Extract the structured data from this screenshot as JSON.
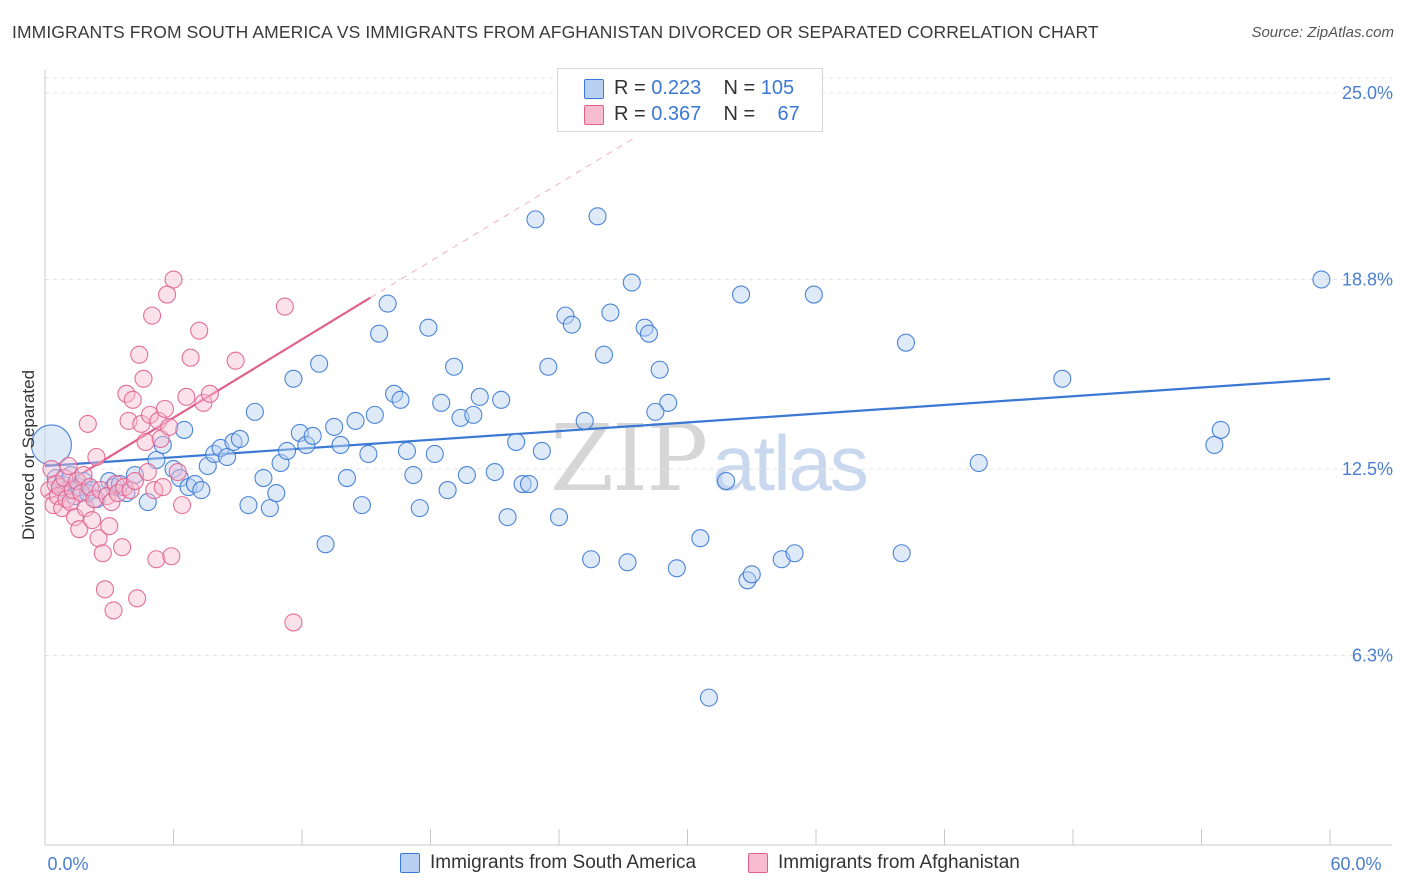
{
  "title": "IMMIGRANTS FROM SOUTH AMERICA VS IMMIGRANTS FROM AFGHANISTAN DIVORCED OR SEPARATED CORRELATION CHART",
  "source": "Source: ZipAtlas.com",
  "watermark": {
    "zip": "ZIP",
    "atlas": "atlas"
  },
  "colors": {
    "blue": "#3a78d4",
    "blue_fill": "#b9d0f2",
    "pink": "#e0608e",
    "pink_fill": "#f7bcd0",
    "grid": "#e2e2e2"
  },
  "legend": {
    "rows": [
      {
        "r_label": "R =",
        "r_value": "0.223",
        "n_label": "N =",
        "n_value": "105"
      },
      {
        "r_label": "R =",
        "r_value": "0.367",
        "n_label": "N =",
        "n_value": "67"
      }
    ]
  },
  "chart_data": {
    "type": "scatter",
    "title": "IMMIGRANTS FROM SOUTH AMERICA VS IMMIGRANTS FROM AFGHANISTAN DIVORCED OR SEPARATED CORRELATION CHART",
    "xlabel": "",
    "ylabel": "Divorced or Separated",
    "xlim": [
      0,
      60
    ],
    "ylim": [
      0,
      25.5
    ],
    "x_tick_labels": [
      "0.0%",
      "60.0%"
    ],
    "y_ticks": [
      6.3,
      12.5,
      18.8,
      25.0
    ],
    "y_tick_labels": [
      "6.3%",
      "12.5%",
      "18.8%",
      "25.0%"
    ],
    "legend_position": "top-center",
    "series": [
      {
        "name": "Immigrants from South America",
        "color": "#3a78d4",
        "R": 0.223,
        "N": 105,
        "trend": {
          "x": [
            0,
            60
          ],
          "y": [
            12.6,
            15.5
          ],
          "dashed_extension": false
        },
        "points": [
          [
            0.3,
            13.3
          ],
          [
            0.5,
            12.2
          ],
          [
            0.8,
            12.0
          ],
          [
            1.0,
            11.8
          ],
          [
            1.2,
            12.3
          ],
          [
            1.4,
            11.6
          ],
          [
            1.6,
            11.9
          ],
          [
            1.8,
            12.1
          ],
          [
            2.0,
            11.7
          ],
          [
            2.2,
            11.8
          ],
          [
            2.4,
            11.5
          ],
          [
            3.0,
            12.1
          ],
          [
            3.2,
            11.9
          ],
          [
            3.5,
            12.0
          ],
          [
            3.8,
            11.7
          ],
          [
            4.2,
            12.3
          ],
          [
            4.8,
            11.4
          ],
          [
            5.2,
            12.8
          ],
          [
            5.5,
            13.3
          ],
          [
            6.0,
            12.5
          ],
          [
            6.3,
            12.2
          ],
          [
            6.5,
            13.8
          ],
          [
            6.7,
            11.9
          ],
          [
            7.0,
            12.0
          ],
          [
            7.3,
            11.8
          ],
          [
            7.6,
            12.6
          ],
          [
            7.9,
            13.0
          ],
          [
            8.2,
            13.2
          ],
          [
            8.5,
            12.9
          ],
          [
            8.8,
            13.4
          ],
          [
            9.1,
            13.5
          ],
          [
            9.5,
            11.3
          ],
          [
            9.8,
            14.4
          ],
          [
            10.2,
            12.2
          ],
          [
            10.5,
            11.2
          ],
          [
            10.8,
            11.7
          ],
          [
            11.0,
            12.7
          ],
          [
            11.3,
            13.1
          ],
          [
            11.6,
            15.5
          ],
          [
            11.9,
            13.7
          ],
          [
            12.2,
            13.3
          ],
          [
            12.5,
            13.6
          ],
          [
            12.8,
            16.0
          ],
          [
            13.1,
            10.0
          ],
          [
            13.5,
            13.9
          ],
          [
            13.8,
            13.3
          ],
          [
            14.1,
            12.2
          ],
          [
            14.5,
            14.1
          ],
          [
            14.8,
            11.3
          ],
          [
            15.1,
            13.0
          ],
          [
            15.4,
            14.3
          ],
          [
            15.6,
            17.0
          ],
          [
            16.0,
            18.0
          ],
          [
            16.3,
            15.0
          ],
          [
            16.6,
            14.8
          ],
          [
            16.9,
            13.1
          ],
          [
            17.2,
            12.3
          ],
          [
            17.5,
            11.2
          ],
          [
            17.9,
            17.2
          ],
          [
            18.2,
            13.0
          ],
          [
            18.5,
            14.7
          ],
          [
            18.8,
            11.8
          ],
          [
            19.1,
            15.9
          ],
          [
            19.4,
            14.2
          ],
          [
            19.7,
            12.3
          ],
          [
            20.0,
            14.3
          ],
          [
            20.3,
            14.9
          ],
          [
            21.0,
            12.4
          ],
          [
            21.3,
            14.8
          ],
          [
            21.6,
            10.9
          ],
          [
            22.0,
            13.4
          ],
          [
            22.3,
            12.0
          ],
          [
            22.6,
            12.0
          ],
          [
            22.9,
            20.8
          ],
          [
            23.2,
            13.1
          ],
          [
            23.5,
            15.9
          ],
          [
            24.0,
            10.9
          ],
          [
            24.3,
            17.6
          ],
          [
            24.6,
            17.3
          ],
          [
            25.2,
            14.1
          ],
          [
            25.5,
            9.5
          ],
          [
            25.8,
            20.9
          ],
          [
            26.1,
            16.3
          ],
          [
            26.4,
            17.7
          ],
          [
            27.2,
            9.4
          ],
          [
            27.4,
            18.7
          ],
          [
            28.0,
            17.2
          ],
          [
            28.2,
            17.0
          ],
          [
            28.7,
            15.8
          ],
          [
            29.1,
            14.7
          ],
          [
            28.5,
            14.4
          ],
          [
            29.5,
            9.2
          ],
          [
            30.6,
            10.2
          ],
          [
            31.0,
            4.9
          ],
          [
            31.8,
            12.1
          ],
          [
            32.5,
            18.3
          ],
          [
            32.8,
            8.8
          ],
          [
            33.0,
            9.0
          ],
          [
            34.4,
            9.5
          ],
          [
            35.0,
            9.7
          ],
          [
            35.9,
            18.3
          ],
          [
            40.0,
            9.7
          ],
          [
            40.2,
            16.7
          ],
          [
            43.6,
            12.7
          ],
          [
            47.5,
            15.5
          ],
          [
            54.6,
            13.3
          ],
          [
            54.9,
            13.8
          ],
          [
            59.6,
            18.8
          ]
        ]
      },
      {
        "name": "Immigrants from Afghanistan",
        "color": "#e0608e",
        "R": 0.367,
        "N": 67,
        "trend": {
          "x": [
            0,
            15.2
          ],
          "y": [
            11.6,
            18.2
          ],
          "dashed_extension": true,
          "dashed_to": [
            27.5,
            23.5
          ]
        },
        "points": [
          [
            0.2,
            11.8
          ],
          [
            0.3,
            12.5
          ],
          [
            0.4,
            11.3
          ],
          [
            0.5,
            12.0
          ],
          [
            0.6,
            11.6
          ],
          [
            0.7,
            11.9
          ],
          [
            0.8,
            11.2
          ],
          [
            0.9,
            12.2
          ],
          [
            1.0,
            11.5
          ],
          [
            1.1,
            12.6
          ],
          [
            1.2,
            11.4
          ],
          [
            1.3,
            11.8
          ],
          [
            1.4,
            10.9
          ],
          [
            1.5,
            12.1
          ],
          [
            1.6,
            10.5
          ],
          [
            1.7,
            11.7
          ],
          [
            1.8,
            12.3
          ],
          [
            1.9,
            11.2
          ],
          [
            2.0,
            14.0
          ],
          [
            2.1,
            11.9
          ],
          [
            2.2,
            10.8
          ],
          [
            2.3,
            11.5
          ],
          [
            2.4,
            12.9
          ],
          [
            2.5,
            10.2
          ],
          [
            2.6,
            11.8
          ],
          [
            2.7,
            9.7
          ],
          [
            2.8,
            8.5
          ],
          [
            2.9,
            11.6
          ],
          [
            3.0,
            10.6
          ],
          [
            3.1,
            11.4
          ],
          [
            3.2,
            7.8
          ],
          [
            3.3,
            12.0
          ],
          [
            3.4,
            11.7
          ],
          [
            3.6,
            9.9
          ],
          [
            3.7,
            11.9
          ],
          [
            3.8,
            15.0
          ],
          [
            3.9,
            14.1
          ],
          [
            4.0,
            11.8
          ],
          [
            4.1,
            14.8
          ],
          [
            4.2,
            12.1
          ],
          [
            4.3,
            8.2
          ],
          [
            4.4,
            16.3
          ],
          [
            4.5,
            14.0
          ],
          [
            4.6,
            15.5
          ],
          [
            4.7,
            13.4
          ],
          [
            4.8,
            12.4
          ],
          [
            4.9,
            14.3
          ],
          [
            5.0,
            17.6
          ],
          [
            5.1,
            11.8
          ],
          [
            5.2,
            9.5
          ],
          [
            5.3,
            14.1
          ],
          [
            5.4,
            13.5
          ],
          [
            5.5,
            11.9
          ],
          [
            5.6,
            14.5
          ],
          [
            5.7,
            18.3
          ],
          [
            5.8,
            13.9
          ],
          [
            5.9,
            9.6
          ],
          [
            6.0,
            18.8
          ],
          [
            6.2,
            12.4
          ],
          [
            6.4,
            11.3
          ],
          [
            6.6,
            14.9
          ],
          [
            6.8,
            16.2
          ],
          [
            7.2,
            17.1
          ],
          [
            7.4,
            14.7
          ],
          [
            7.7,
            15.0
          ],
          [
            8.9,
            16.1
          ],
          [
            11.2,
            17.9
          ],
          [
            11.6,
            7.4
          ]
        ]
      }
    ]
  },
  "bottom_legend": {
    "south_america": "Immigrants from South America",
    "afghanistan": "Immigrants from Afghanistan"
  }
}
